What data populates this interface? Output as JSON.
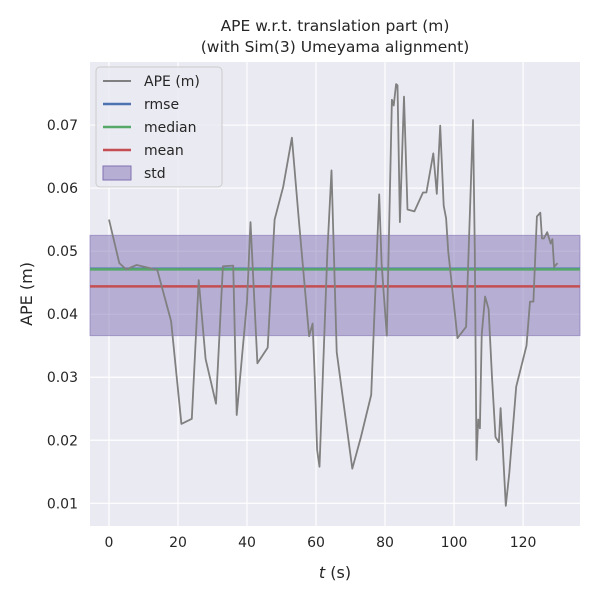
{
  "chart_data": {
    "type": "line",
    "title": [
      "APE w.r.t. translation part (m)",
      "(with Sim(3) Umeyama alignment)"
    ],
    "xlabel_italic": "t",
    "xlabel_rest": " (s)",
    "ylabel": "APE (m)",
    "xlim": [
      -5.5,
      136.5
    ],
    "ylim": [
      0.0064,
      0.08
    ],
    "xticks": [
      0,
      20,
      40,
      60,
      80,
      100,
      120
    ],
    "yticks": [
      0.01,
      0.02,
      0.03,
      0.04,
      0.05,
      0.06,
      0.07
    ],
    "ytick_labels": [
      "0.01",
      "0.02",
      "0.03",
      "0.04",
      "0.05",
      "0.06",
      "0.07"
    ],
    "grid": true,
    "legend_position": "top-left",
    "legend": [
      {
        "label": "APE (m)",
        "color": "#808080",
        "kind": "line"
      },
      {
        "label": "rmse",
        "color": "#4c72b0",
        "kind": "line"
      },
      {
        "label": "median",
        "color": "#55a868",
        "kind": "line"
      },
      {
        "label": "mean",
        "color": "#c44e52",
        "kind": "line"
      },
      {
        "label": "std",
        "color": "#8172b3",
        "kind": "patch"
      }
    ],
    "stats": {
      "rmse": 0.0472,
      "median": 0.0471,
      "mean": 0.0444,
      "std_band": [
        0.0366,
        0.0525
      ]
    },
    "series": [
      {
        "name": "APE (m)",
        "color": "#808080",
        "x": [
          0,
          3,
          5,
          8,
          12,
          14,
          18,
          21,
          24,
          26,
          28,
          31,
          33,
          36,
          37,
          40,
          41,
          43,
          46,
          48,
          50.5,
          53,
          55,
          58,
          59,
          59.7,
          60.3,
          61,
          63.3,
          64.5,
          66,
          70.5,
          73,
          76,
          78.3,
          79,
          80.5,
          82,
          82.5,
          83.2,
          83.6,
          84.3,
          85.5,
          86.5,
          88.5,
          91,
          92,
          94,
          95,
          96,
          97,
          97.7,
          98.3,
          101,
          103.5,
          105.5,
          106,
          106.5,
          107,
          107.5,
          108,
          109,
          110,
          111,
          112,
          113,
          113.5,
          114,
          115,
          116,
          118,
          121,
          122,
          123,
          124,
          125,
          125.5,
          126,
          127,
          128,
          128.5,
          129,
          130
        ],
        "y": [
          0.055,
          0.0481,
          0.0471,
          0.0478,
          0.0473,
          0.047,
          0.0389,
          0.0226,
          0.0234,
          0.0454,
          0.0329,
          0.0258,
          0.0476,
          0.0477,
          0.024,
          0.042,
          0.0546,
          0.0322,
          0.0347,
          0.055,
          0.0602,
          0.068,
          0.055,
          0.0365,
          0.0385,
          0.029,
          0.0185,
          0.0158,
          0.05,
          0.0628,
          0.034,
          0.0155,
          0.0205,
          0.0272,
          0.059,
          0.048,
          0.0366,
          0.074,
          0.0731,
          0.0765,
          0.0763,
          0.0546,
          0.0745,
          0.0566,
          0.0563,
          0.0593,
          0.0593,
          0.0655,
          0.0591,
          0.0699,
          0.0572,
          0.0552,
          0.05,
          0.0362,
          0.038,
          0.0708,
          0.05,
          0.0169,
          0.0233,
          0.0219,
          0.0367,
          0.0428,
          0.0408,
          0.03,
          0.0205,
          0.0197,
          0.0251,
          0.02,
          0.0096,
          0.0148,
          0.0285,
          0.035,
          0.042,
          0.042,
          0.0555,
          0.0561,
          0.052,
          0.052,
          0.053,
          0.0512,
          0.0519,
          0.0475,
          0.0481
        ]
      }
    ]
  }
}
